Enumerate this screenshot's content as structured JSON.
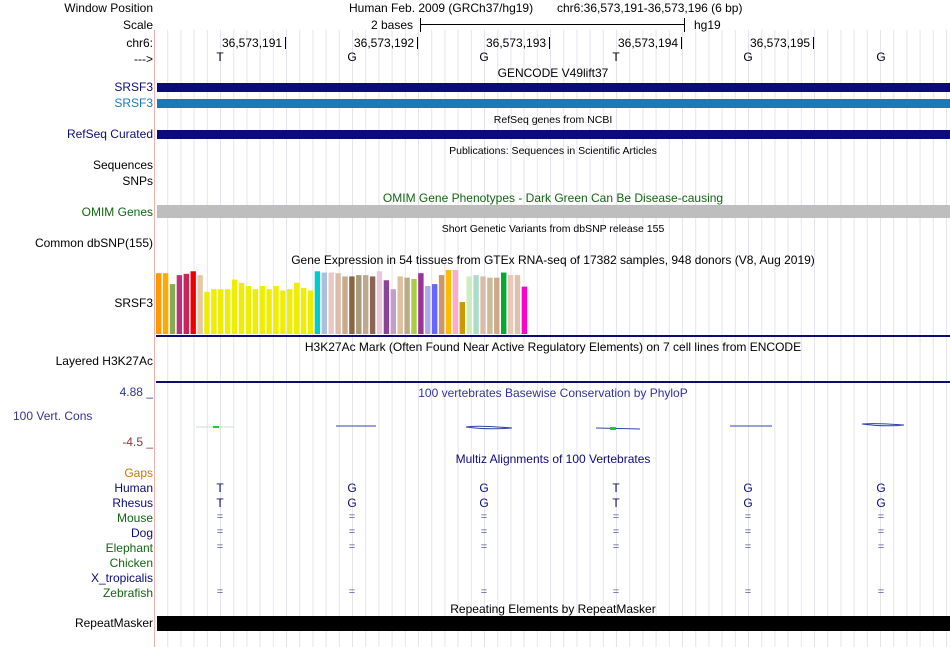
{
  "header": {
    "window_position_label": "Window Position",
    "scale_label": "Scale",
    "chrom_label": "chr6:",
    "strand_label": "--->",
    "assembly_text": "Human Feb. 2009 (GRCh37/hg19)",
    "position_text": "chr6:36,573,191-36,573,196 (6 bp)",
    "scale_text": "2 bases",
    "db_text": "hg19",
    "ticks": [
      "36,573,191",
      "36,573,192",
      "36,573,193",
      "36,573,194",
      "36,573,195"
    ],
    "bases": [
      "T",
      "G",
      "G",
      "T",
      "G",
      "G"
    ]
  },
  "tracks": {
    "gencode": {
      "title": "GENCODE V49lift37",
      "gene1": "SRSF3",
      "gene2": "SRSF3",
      "color1": "#0c0c78",
      "color2": "#1a7ab8"
    },
    "refseq": {
      "title": "RefSeq genes from NCBI",
      "label": "RefSeq Curated"
    },
    "publications": {
      "title": "Publications: Sequences in Scientific Articles",
      "label1": "Sequences",
      "label2": "SNPs"
    },
    "omim": {
      "title": "OMIM Gene Phenotypes - Dark Green Can Be Disease-causing",
      "label": "OMIM Genes",
      "title_color": "#116611"
    },
    "dbsnp": {
      "title": "Short Genetic Variants from dbSNP release 155",
      "label": "Common dbSNP(155)"
    },
    "gtex": {
      "title": "Gene Expression in 54 tissues from GTEx RNA-seq of 17382 samples, 948 donors (V8, Aug 2019)",
      "label": "SRSF3",
      "colors": [
        "#ff9900",
        "#ffaa00",
        "#88aa55",
        "#bb3377",
        "#cc2255",
        "#ee0000",
        "#e8c8a0",
        "#eeee00",
        "#eeee00",
        "#eeee00",
        "#eeee00",
        "#eeee00",
        "#eeee00",
        "#eeee00",
        "#eeee00",
        "#eeee00",
        "#eeee00",
        "#eeee00",
        "#eeee00",
        "#eeee00",
        "#eeee00",
        "#eeee00",
        "#eeee00",
        "#00cccc",
        "#aac0dd",
        "#e8c8c0",
        "#ddbbaa",
        "#ccaa88",
        "#886644",
        "#aa9977",
        "#c0a890",
        "#886655",
        "#e8c8d8",
        "#884499",
        "#c0a0c8",
        "#ddc0a0",
        "#bbaa88",
        "#aacc44",
        "#993399",
        "#aaaaee",
        "#6666ff",
        "#cc9966",
        "#ffbb00",
        "#ffaacc",
        "#cc9900",
        "#cceebb",
        "#aaddcc",
        "#ddbbaa",
        "#ccbb99",
        "#ccaa88",
        "#00aa33",
        "#e8c8b8",
        "#ddc0b0",
        "#ff00cc"
      ],
      "values": [
        0.95,
        0.95,
        0.78,
        0.92,
        0.94,
        0.98,
        0.92,
        0.66,
        0.7,
        0.7,
        0.7,
        0.85,
        0.8,
        0.75,
        0.7,
        0.75,
        0.7,
        0.75,
        0.68,
        0.7,
        0.8,
        0.72,
        0.68,
        0.98,
        0.96,
        0.96,
        0.95,
        0.9,
        0.9,
        0.92,
        0.92,
        0.9,
        0.98,
        0.84,
        0.7,
        0.9,
        0.88,
        0.86,
        0.95,
        0.75,
        0.78,
        0.92,
        1.0,
        1.0,
        0.5,
        0.9,
        0.92,
        0.9,
        0.88,
        0.88,
        0.96,
        0.92,
        0.92,
        0.74
      ]
    },
    "h3k27ac": {
      "title": "H3K27Ac Mark (Often Found Near Active Regulatory Elements) on 7 cell lines from ENCODE",
      "label": "Layered H3K27Ac"
    },
    "phylop": {
      "title": "100 vertebrates Basewise Conservation by PhyloP",
      "label": "100 Vert. Cons",
      "max_label": "4.88 _",
      "min_label": "-4.5 _",
      "title_color": "#333399",
      "max_color": "#333399",
      "min_color": "#993333"
    },
    "multiz": {
      "title": "Multiz Alignments of 100 Vertebrates",
      "gaps_label": "Gaps",
      "gaps_color": "#cc7700",
      "species": [
        {
          "name": "Human",
          "color": "#0c0c78",
          "row": [
            "T",
            "G",
            "G",
            "T",
            "G",
            "G"
          ]
        },
        {
          "name": "Rhesus",
          "color": "#0c0c78",
          "row": [
            "T",
            "G",
            "G",
            "T",
            "G",
            "G"
          ]
        },
        {
          "name": "Mouse",
          "color": "#116611",
          "row": [
            "=",
            "=",
            "=",
            "=",
            "=",
            "="
          ]
        },
        {
          "name": "Dog",
          "color": "#0c0c78",
          "row": [
            "=",
            "=",
            "=",
            "=",
            "=",
            "="
          ]
        },
        {
          "name": "Elephant",
          "color": "#116611",
          "row": [
            "=",
            "=",
            "=",
            "=",
            "=",
            "="
          ]
        },
        {
          "name": "Chicken",
          "color": "#116611",
          "row": [
            "",
            "",
            "",
            "",
            "",
            ""
          ]
        },
        {
          "name": "X_tropicalis",
          "color": "#0c0c78",
          "row": [
            "",
            "",
            "",
            "",
            "",
            ""
          ]
        },
        {
          "name": "Zebrafish",
          "color": "#116611",
          "row": [
            "=",
            "=",
            "=",
            "=",
            "=",
            "="
          ]
        }
      ]
    },
    "repeatmasker": {
      "title": "Repeating Elements by RepeatMasker",
      "label": "RepeatMasker"
    }
  }
}
